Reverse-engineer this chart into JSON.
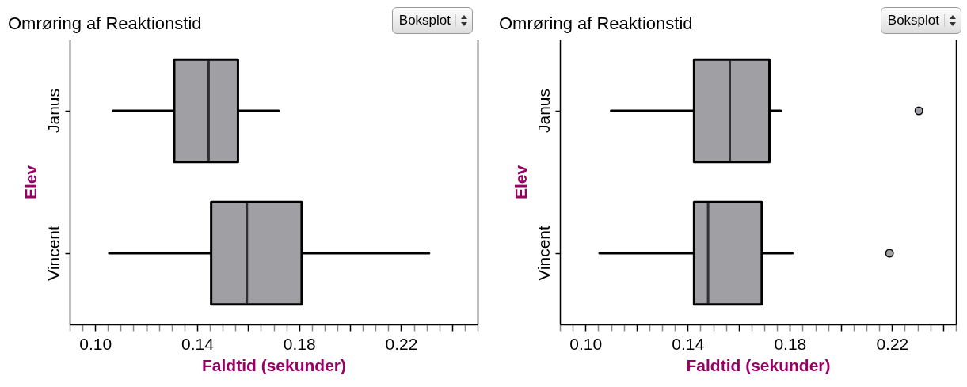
{
  "chart_data": [
    {
      "type": "box",
      "orientation": "horizontal",
      "title": "Omrøring af Reaktionstid",
      "xlabel": "Faldtid (sekunder)",
      "ylabel": "Elev",
      "annotations": [
        "Boksplot"
      ],
      "categories": [
        "Janus",
        "Vincent"
      ],
      "color": "#a0a0a4",
      "boxes": [
        {
          "low": 0.107,
          "q1": 0.131,
          "median": 0.1445,
          "q3": 0.156,
          "high": 0.172
        },
        {
          "low": 0.1055,
          "q1": 0.1455,
          "median": 0.1595,
          "q3": 0.181,
          "high": 0.231
        }
      ],
      "xlim": [
        0.09,
        0.25
      ],
      "xticks": [
        {
          "value": 0.09,
          "label": null
        },
        {
          "value": 0.095,
          "label": null
        },
        {
          "value": 0.1,
          "label": "0.10"
        },
        {
          "value": 0.105,
          "label": null
        },
        {
          "value": 0.11,
          "label": null
        },
        {
          "value": 0.115,
          "label": null
        },
        {
          "value": 0.12,
          "label": null
        },
        {
          "value": 0.125,
          "label": null
        },
        {
          "value": 0.13,
          "label": null
        },
        {
          "value": 0.135,
          "label": null
        },
        0.14,
        {
          "value": 0.145,
          "label": null
        },
        {
          "value": 0.15,
          "label": null
        },
        {
          "value": 0.155,
          "label": null
        },
        {
          "value": 0.16,
          "label": null
        },
        {
          "value": 0.165,
          "label": null
        },
        {
          "value": 0.17,
          "label": null
        },
        {
          "value": 0.175,
          "label": null
        },
        0.18,
        {
          "value": 0.185,
          "label": null
        },
        {
          "value": 0.19,
          "label": null
        },
        {
          "value": 0.195,
          "label": null
        },
        {
          "value": 0.2,
          "label": null
        },
        {
          "value": 0.205,
          "label": null
        },
        {
          "value": 0.21,
          "label": null
        },
        {
          "value": 0.215,
          "label": null
        },
        0.22,
        {
          "value": 0.225,
          "label": null
        },
        {
          "value": 0.23,
          "label": null
        },
        {
          "value": 0.235,
          "label": null
        },
        {
          "value": 0.24,
          "label": null
        },
        {
          "value": 0.245,
          "label": null
        },
        {
          "value": 0.25,
          "label": null
        }
      ]
    },
    {
      "type": "box",
      "orientation": "horizontal",
      "title": "Omrøring af Reaktionstid",
      "xlabel": "Faldtid (sekunder)",
      "ylabel": "Elev",
      "annotations": [
        "Boksplot"
      ],
      "categories": [
        "Janus",
        "Vincent"
      ],
      "color": "#a0a0a4",
      "boxes": [
        {
          "low": 0.11,
          "q1": 0.1425,
          "median": 0.1565,
          "q3": 0.172,
          "high": 0.1765,
          "outliers": [
            0.2305
          ]
        },
        {
          "low": 0.1055,
          "q1": 0.1425,
          "median": 0.148,
          "q3": 0.169,
          "high": 0.181,
          "outliers": [
            0.219
          ]
        }
      ],
      "xlim": [
        0.09,
        0.245
      ],
      "xticks": [
        {
          "value": 0.09,
          "label": null
        },
        {
          "value": 0.095,
          "label": null
        },
        {
          "value": 0.1,
          "label": "0.10"
        },
        {
          "value": 0.105,
          "label": null
        },
        {
          "value": 0.11,
          "label": null
        },
        {
          "value": 0.115,
          "label": null
        },
        {
          "value": 0.12,
          "label": null
        },
        {
          "value": 0.125,
          "label": null
        },
        {
          "value": 0.13,
          "label": null
        },
        {
          "value": 0.135,
          "label": null
        },
        0.14,
        {
          "value": 0.145,
          "label": null
        },
        {
          "value": 0.15,
          "label": null
        },
        {
          "value": 0.155,
          "label": null
        },
        {
          "value": 0.16,
          "label": null
        },
        {
          "value": 0.165,
          "label": null
        },
        {
          "value": 0.17,
          "label": null
        },
        {
          "value": 0.175,
          "label": null
        },
        0.18,
        {
          "value": 0.185,
          "label": null
        },
        {
          "value": 0.19,
          "label": null
        },
        {
          "value": 0.195,
          "label": null
        },
        {
          "value": 0.2,
          "label": null
        },
        {
          "value": 0.205,
          "label": null
        },
        {
          "value": 0.21,
          "label": null
        },
        {
          "value": 0.215,
          "label": null
        },
        0.22,
        {
          "value": 0.225,
          "label": null
        },
        {
          "value": 0.23,
          "label": null
        },
        {
          "value": 0.235,
          "label": null
        },
        {
          "value": 0.24,
          "label": null
        },
        {
          "value": 0.245,
          "label": null
        }
      ]
    }
  ]
}
